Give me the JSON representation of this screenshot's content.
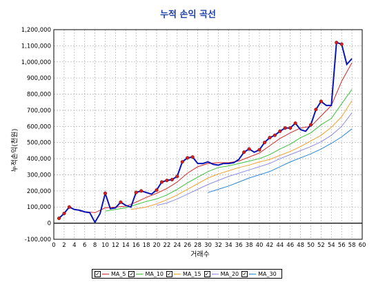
{
  "chart_data": {
    "type": "line",
    "title": "누적 손익 곡선",
    "xlabel": "거래수",
    "ylabel": "누적손익(천원)",
    "xlim": [
      0,
      60
    ],
    "ylim": [
      -100000,
      1200000
    ],
    "xticks": [
      "0",
      "2",
      "4",
      "6",
      "8",
      "10",
      "12",
      "14",
      "16",
      "18",
      "20",
      "22",
      "24",
      "26",
      "28",
      "30",
      "32",
      "34",
      "36",
      "38",
      "40",
      "42",
      "44",
      "46",
      "48",
      "50",
      "52",
      "54",
      "56",
      "58",
      "60"
    ],
    "yticks": [
      "-100,000",
      "0",
      "100,000",
      "200,000",
      "300,000",
      "400,000",
      "500,000",
      "600,000",
      "700,000",
      "800,000",
      "900,000",
      "1,000,000",
      "1,100,000",
      "1,200,000"
    ],
    "grid": true,
    "zero_line": true,
    "legend_position": "bottom",
    "equity": {
      "color": "#0a14b4",
      "marker_color": "#d42020",
      "x": [
        1,
        2,
        3,
        4,
        5,
        6,
        7,
        8,
        9,
        10,
        11,
        12,
        13,
        14,
        15,
        16,
        17,
        18,
        19,
        20,
        21,
        22,
        23,
        24,
        25,
        26,
        27,
        28,
        29,
        30,
        31,
        32,
        33,
        34,
        35,
        36,
        37,
        38,
        39,
        40,
        41,
        42,
        43,
        44,
        45,
        46,
        47,
        48,
        49,
        50,
        51,
        52,
        53,
        54,
        55,
        56,
        57,
        58
      ],
      "y": [
        30000,
        60000,
        100000,
        85000,
        80000,
        70000,
        65000,
        5000,
        60000,
        185000,
        90000,
        95000,
        130000,
        110000,
        100000,
        190000,
        200000,
        190000,
        180000,
        205000,
        255000,
        265000,
        270000,
        290000,
        380000,
        405000,
        410000,
        370000,
        370000,
        380000,
        365000,
        360000,
        370000,
        370000,
        375000,
        395000,
        440000,
        460000,
        440000,
        455000,
        500000,
        530000,
        545000,
        570000,
        590000,
        590000,
        620000,
        580000,
        570000,
        610000,
        705000,
        755000,
        730000,
        730000,
        1120000,
        1110000,
        985000,
        1020000
      ]
    },
    "series": [
      {
        "name": "MA_5",
        "color": "#d62828",
        "x": [
          5,
          8,
          10,
          12,
          14,
          16,
          18,
          20,
          22,
          24,
          26,
          28,
          30,
          32,
          34,
          36,
          38,
          40,
          42,
          44,
          46,
          48,
          50,
          52,
          54,
          56,
          58
        ],
        "y": [
          75000,
          65000,
          95000,
          100000,
          105000,
          130000,
          160000,
          185000,
          215000,
          255000,
          310000,
          350000,
          370000,
          375000,
          375000,
          385000,
          410000,
          435000,
          480000,
          525000,
          560000,
          590000,
          600000,
          665000,
          730000,
          880000,
          995000
        ]
      },
      {
        "name": "MA_10",
        "color": "#3cc23c",
        "x": [
          10,
          12,
          14,
          16,
          18,
          20,
          22,
          24,
          26,
          28,
          30,
          32,
          34,
          36,
          38,
          40,
          42,
          44,
          46,
          48,
          50,
          52,
          54,
          56,
          58
        ],
        "y": [
          75000,
          85000,
          95000,
          115000,
          135000,
          150000,
          175000,
          210000,
          250000,
          285000,
          320000,
          345000,
          355000,
          370000,
          385000,
          400000,
          425000,
          460000,
          490000,
          530000,
          560000,
          610000,
          650000,
          740000,
          830000
        ]
      },
      {
        "name": "MA_15",
        "color": "#f0a030",
        "x": [
          15,
          18,
          20,
          22,
          24,
          26,
          28,
          30,
          32,
          34,
          36,
          38,
          40,
          42,
          44,
          46,
          48,
          50,
          52,
          54,
          56,
          58
        ],
        "y": [
          85000,
          100000,
          120000,
          145000,
          175000,
          210000,
          245000,
          280000,
          305000,
          325000,
          345000,
          360000,
          380000,
          395000,
          420000,
          445000,
          475000,
          510000,
          545000,
          595000,
          660000,
          760000
        ]
      },
      {
        "name": "MA_20",
        "color": "#8c8ce6",
        "x": [
          20,
          22,
          24,
          26,
          28,
          30,
          32,
          34,
          36,
          38,
          40,
          42,
          44,
          46,
          48,
          50,
          52,
          54,
          56,
          58
        ],
        "y": [
          110000,
          125000,
          150000,
          180000,
          210000,
          240000,
          265000,
          290000,
          310000,
          330000,
          350000,
          370000,
          400000,
          425000,
          450000,
          475000,
          505000,
          545000,
          600000,
          685000
        ]
      },
      {
        "name": "MA_30",
        "color": "#2a86d8",
        "x": [
          30,
          32,
          34,
          36,
          38,
          40,
          42,
          44,
          46,
          48,
          50,
          52,
          54,
          56,
          58
        ],
        "y": [
          190000,
          210000,
          230000,
          255000,
          280000,
          300000,
          320000,
          350000,
          380000,
          405000,
          430000,
          460000,
          495000,
          535000,
          585000
        ]
      }
    ]
  }
}
